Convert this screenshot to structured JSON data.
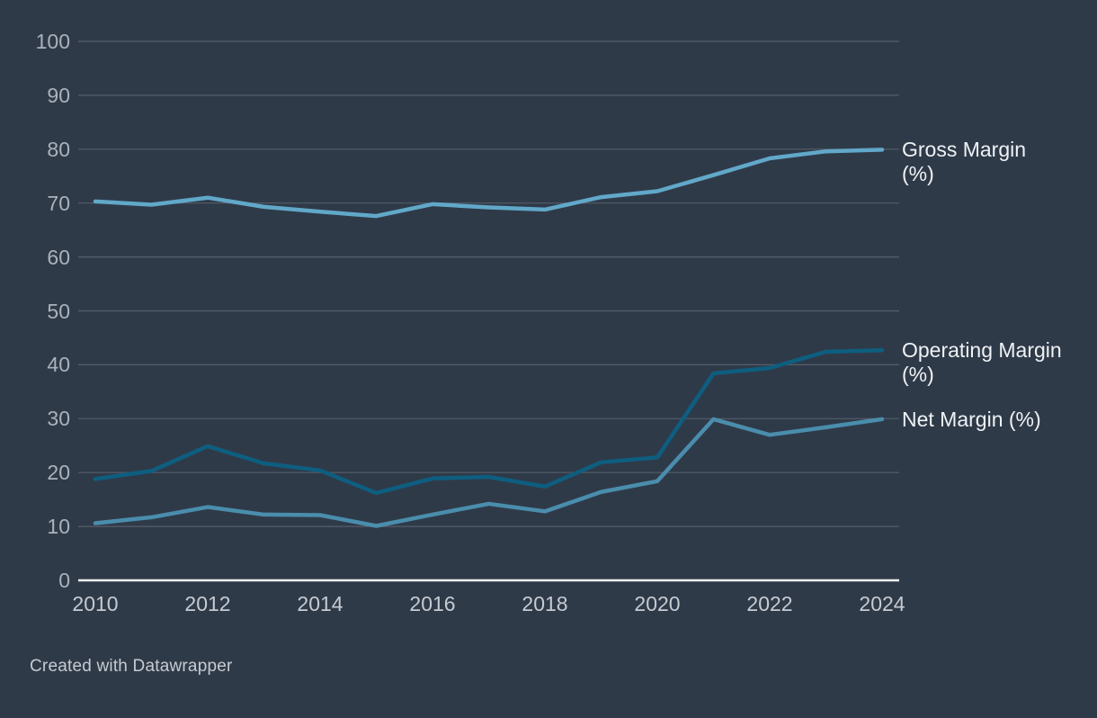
{
  "chart_data": {
    "type": "line",
    "title": "",
    "xlabel": "",
    "ylabel": "",
    "x": [
      2010,
      2011,
      2012,
      2013,
      2014,
      2015,
      2016,
      2017,
      2018,
      2019,
      2020,
      2021,
      2022,
      2023,
      2024
    ],
    "series": [
      {
        "name": "Gross Margin (%)",
        "label_lines": [
          "Gross Margin",
          "(%)"
        ],
        "color": "#61a8c9",
        "values": [
          70.3,
          69.7,
          71.0,
          69.3,
          68.4,
          67.6,
          69.8,
          69.2,
          68.8,
          71.1,
          72.2,
          75.2,
          78.3,
          79.6,
          79.9
        ]
      },
      {
        "name": "Operating Margin (%)",
        "label_lines": [
          "Operating Margin",
          "(%)"
        ],
        "color": "#0e5e80",
        "values": [
          18.8,
          20.3,
          24.9,
          21.7,
          20.4,
          16.2,
          18.9,
          19.2,
          17.4,
          21.9,
          22.8,
          38.4,
          39.4,
          42.4,
          42.7
        ]
      },
      {
        "name": "Net Margin (%)",
        "label_lines": [
          "Net Margin (%)"
        ],
        "color": "#4a8dac",
        "values": [
          10.6,
          11.7,
          13.6,
          12.2,
          12.1,
          10.1,
          12.2,
          14.2,
          12.8,
          16.4,
          18.4,
          29.9,
          27.0,
          28.4,
          29.9
        ]
      }
    ],
    "xticks": [
      2010,
      2012,
      2014,
      2016,
      2018,
      2020,
      2022,
      2024
    ],
    "yticks": [
      0,
      10,
      20,
      30,
      40,
      50,
      60,
      70,
      80,
      90,
      100
    ],
    "ylim": [
      0,
      100
    ],
    "xlim": [
      2010,
      2024
    ],
    "grid": "horizontal",
    "legend_position": "right-of-line-ends"
  },
  "colors": {
    "background": "#2f3a49",
    "gridline": "#565e69",
    "baseline": "#f4f5f6",
    "y_tick_label": "#aab1ba",
    "x_tick_label": "#c6cbd2",
    "series_label": "#eff2f4",
    "attribution": "#c6cbd1"
  },
  "attribution": {
    "text": "Created with Datawrapper"
  }
}
